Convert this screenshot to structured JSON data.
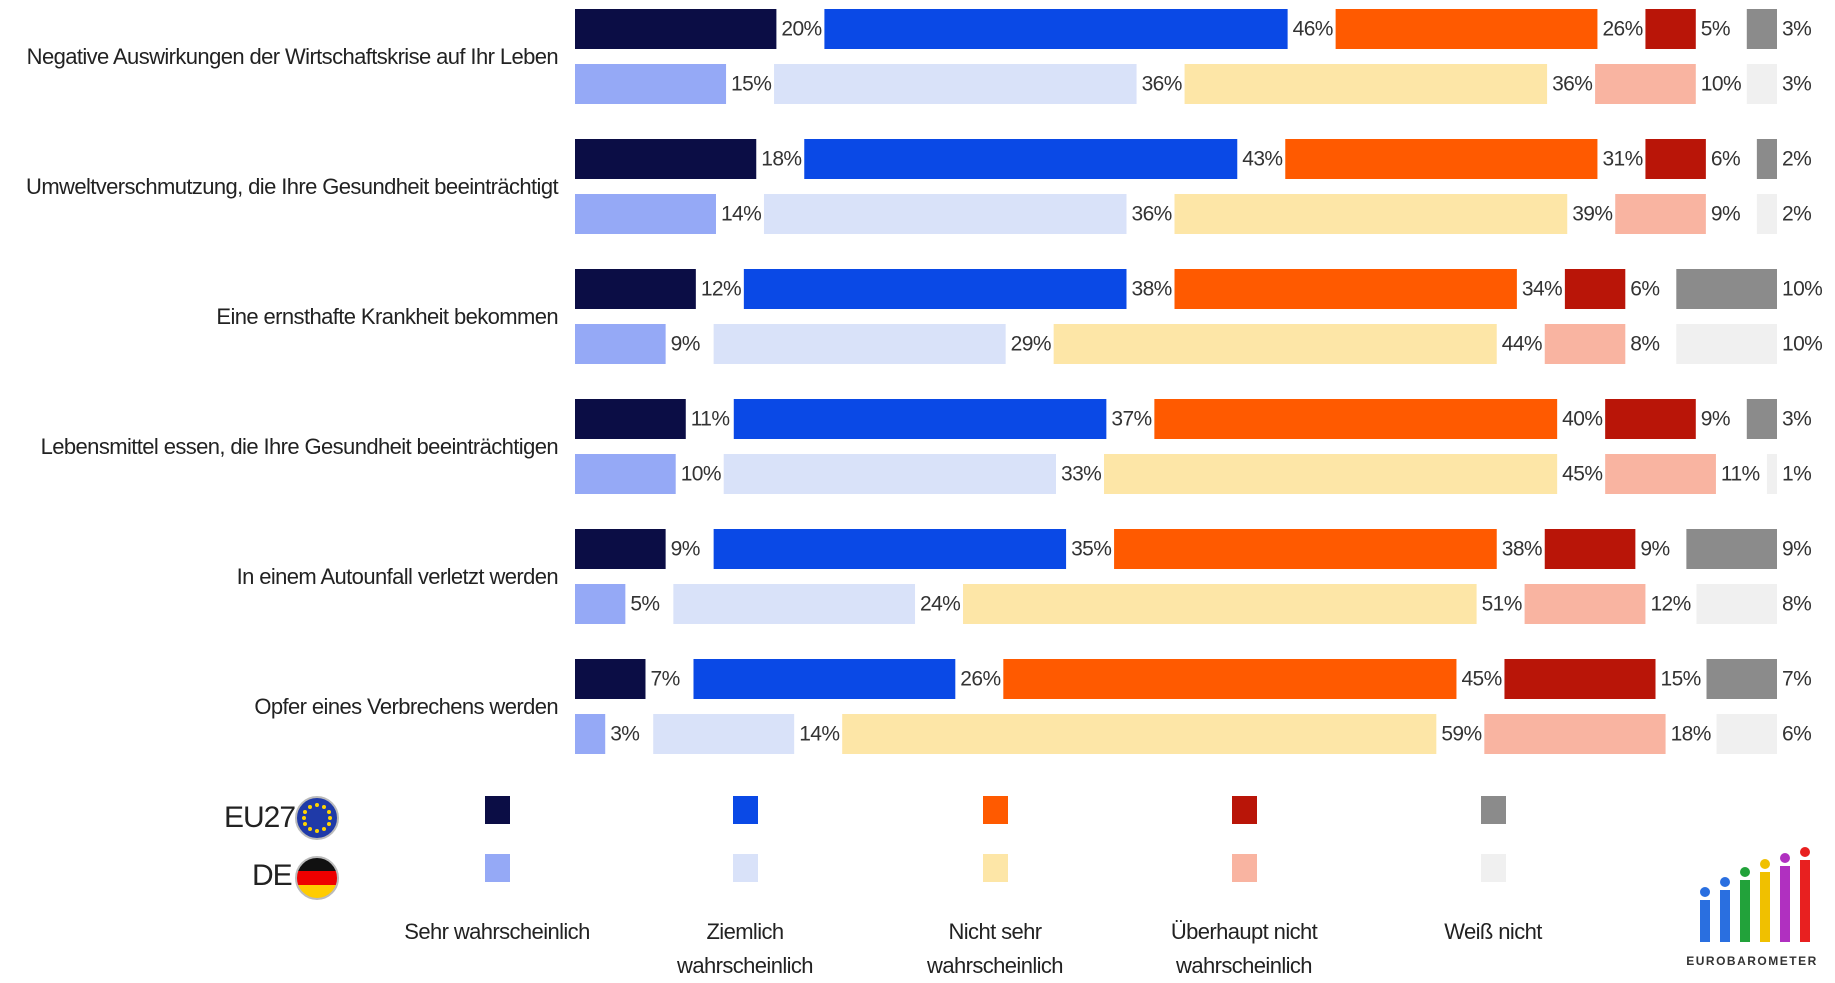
{
  "chart_data": {
    "type": "bar",
    "stacked": true,
    "orientation": "horizontal",
    "categories": [
      "Negative Auswirkungen der Wirtschaftskrise auf Ihr Leben",
      "Umweltverschmutzung, die Ihre Gesundheit beeinträchtigt",
      "Eine ernsthafte Krankheit bekommen",
      "Lebensmittel essen, die Ihre Gesundheit beeinträchtigen",
      "In einem Autounfall verletzt werden",
      "Opfer eines Verbrechens werden"
    ],
    "groups": [
      "EU27",
      "DE"
    ],
    "series": [
      {
        "name": "Sehr wahrscheinlich",
        "colors": [
          "#0b0d45",
          "#95a9f6"
        ],
        "values": [
          [
            20,
            15
          ],
          [
            18,
            14
          ],
          [
            12,
            9
          ],
          [
            11,
            10
          ],
          [
            9,
            5
          ],
          [
            7,
            3
          ]
        ],
        "value_labels": [
          [
            "20%",
            "15%"
          ],
          [
            "18%",
            "14%"
          ],
          [
            "12%",
            "9%"
          ],
          [
            "11%",
            "10%"
          ],
          [
            "9%",
            "5%"
          ],
          [
            "7%",
            "3%"
          ]
        ]
      },
      {
        "name": "Ziemlich wahrscheinlich",
        "colors": [
          "#0a49e6",
          "#d9e2f9"
        ],
        "values": [
          [
            46,
            36
          ],
          [
            43,
            36
          ],
          [
            38,
            29
          ],
          [
            37,
            33
          ],
          [
            35,
            24
          ],
          [
            26,
            14
          ]
        ],
        "value_labels": [
          [
            "46%",
            "36%"
          ],
          [
            "43%",
            "36%"
          ],
          [
            "38%",
            "29%"
          ],
          [
            "37%",
            "33%"
          ],
          [
            "35%",
            "24%"
          ],
          [
            "26%",
            "14%"
          ]
        ]
      },
      {
        "name": "Nicht sehr wahrscheinlich",
        "colors": [
          "#ff5a00",
          "#fde6a7"
        ],
        "values": [
          [
            26,
            36
          ],
          [
            31,
            39
          ],
          [
            34,
            44
          ],
          [
            40,
            45
          ],
          [
            38,
            51
          ],
          [
            45,
            59
          ]
        ],
        "value_labels": [
          [
            "26%",
            "36%"
          ],
          [
            "31%",
            "39%"
          ],
          [
            "34%",
            "44%"
          ],
          [
            "40%",
            "45%"
          ],
          [
            "38%",
            "51%"
          ],
          [
            "45%",
            "59%"
          ]
        ]
      },
      {
        "name": "Überhaupt nicht wahrscheinlich",
        "colors": [
          "#b91508",
          "#f9b4a1"
        ],
        "values": [
          [
            5,
            10
          ],
          [
            6,
            9
          ],
          [
            6,
            8
          ],
          [
            9,
            11
          ],
          [
            9,
            12
          ],
          [
            15,
            18
          ]
        ],
        "value_labels": [
          [
            "5%",
            "10%"
          ],
          [
            "6%",
            "9%"
          ],
          [
            "6%",
            "8%"
          ],
          [
            "9%",
            "11%"
          ],
          [
            "9%",
            "12%"
          ],
          [
            "15%",
            "18%"
          ]
        ]
      },
      {
        "name": "Weiß nicht",
        "colors": [
          "#8b8b8b",
          "#f0f0f0"
        ],
        "values": [
          [
            3,
            3
          ],
          [
            2,
            2
          ],
          [
            10,
            10
          ],
          [
            3,
            1
          ],
          [
            9,
            8
          ],
          [
            7,
            6
          ]
        ],
        "value_labels": [
          [
            "3%",
            "3%"
          ],
          [
            "2%",
            "2%"
          ],
          [
            "10%",
            "10%"
          ],
          [
            "3%",
            "1%"
          ],
          [
            "9%",
            "8%"
          ],
          [
            "7%",
            "6%"
          ]
        ]
      }
    ],
    "logo": "EUROBAROMETER"
  }
}
